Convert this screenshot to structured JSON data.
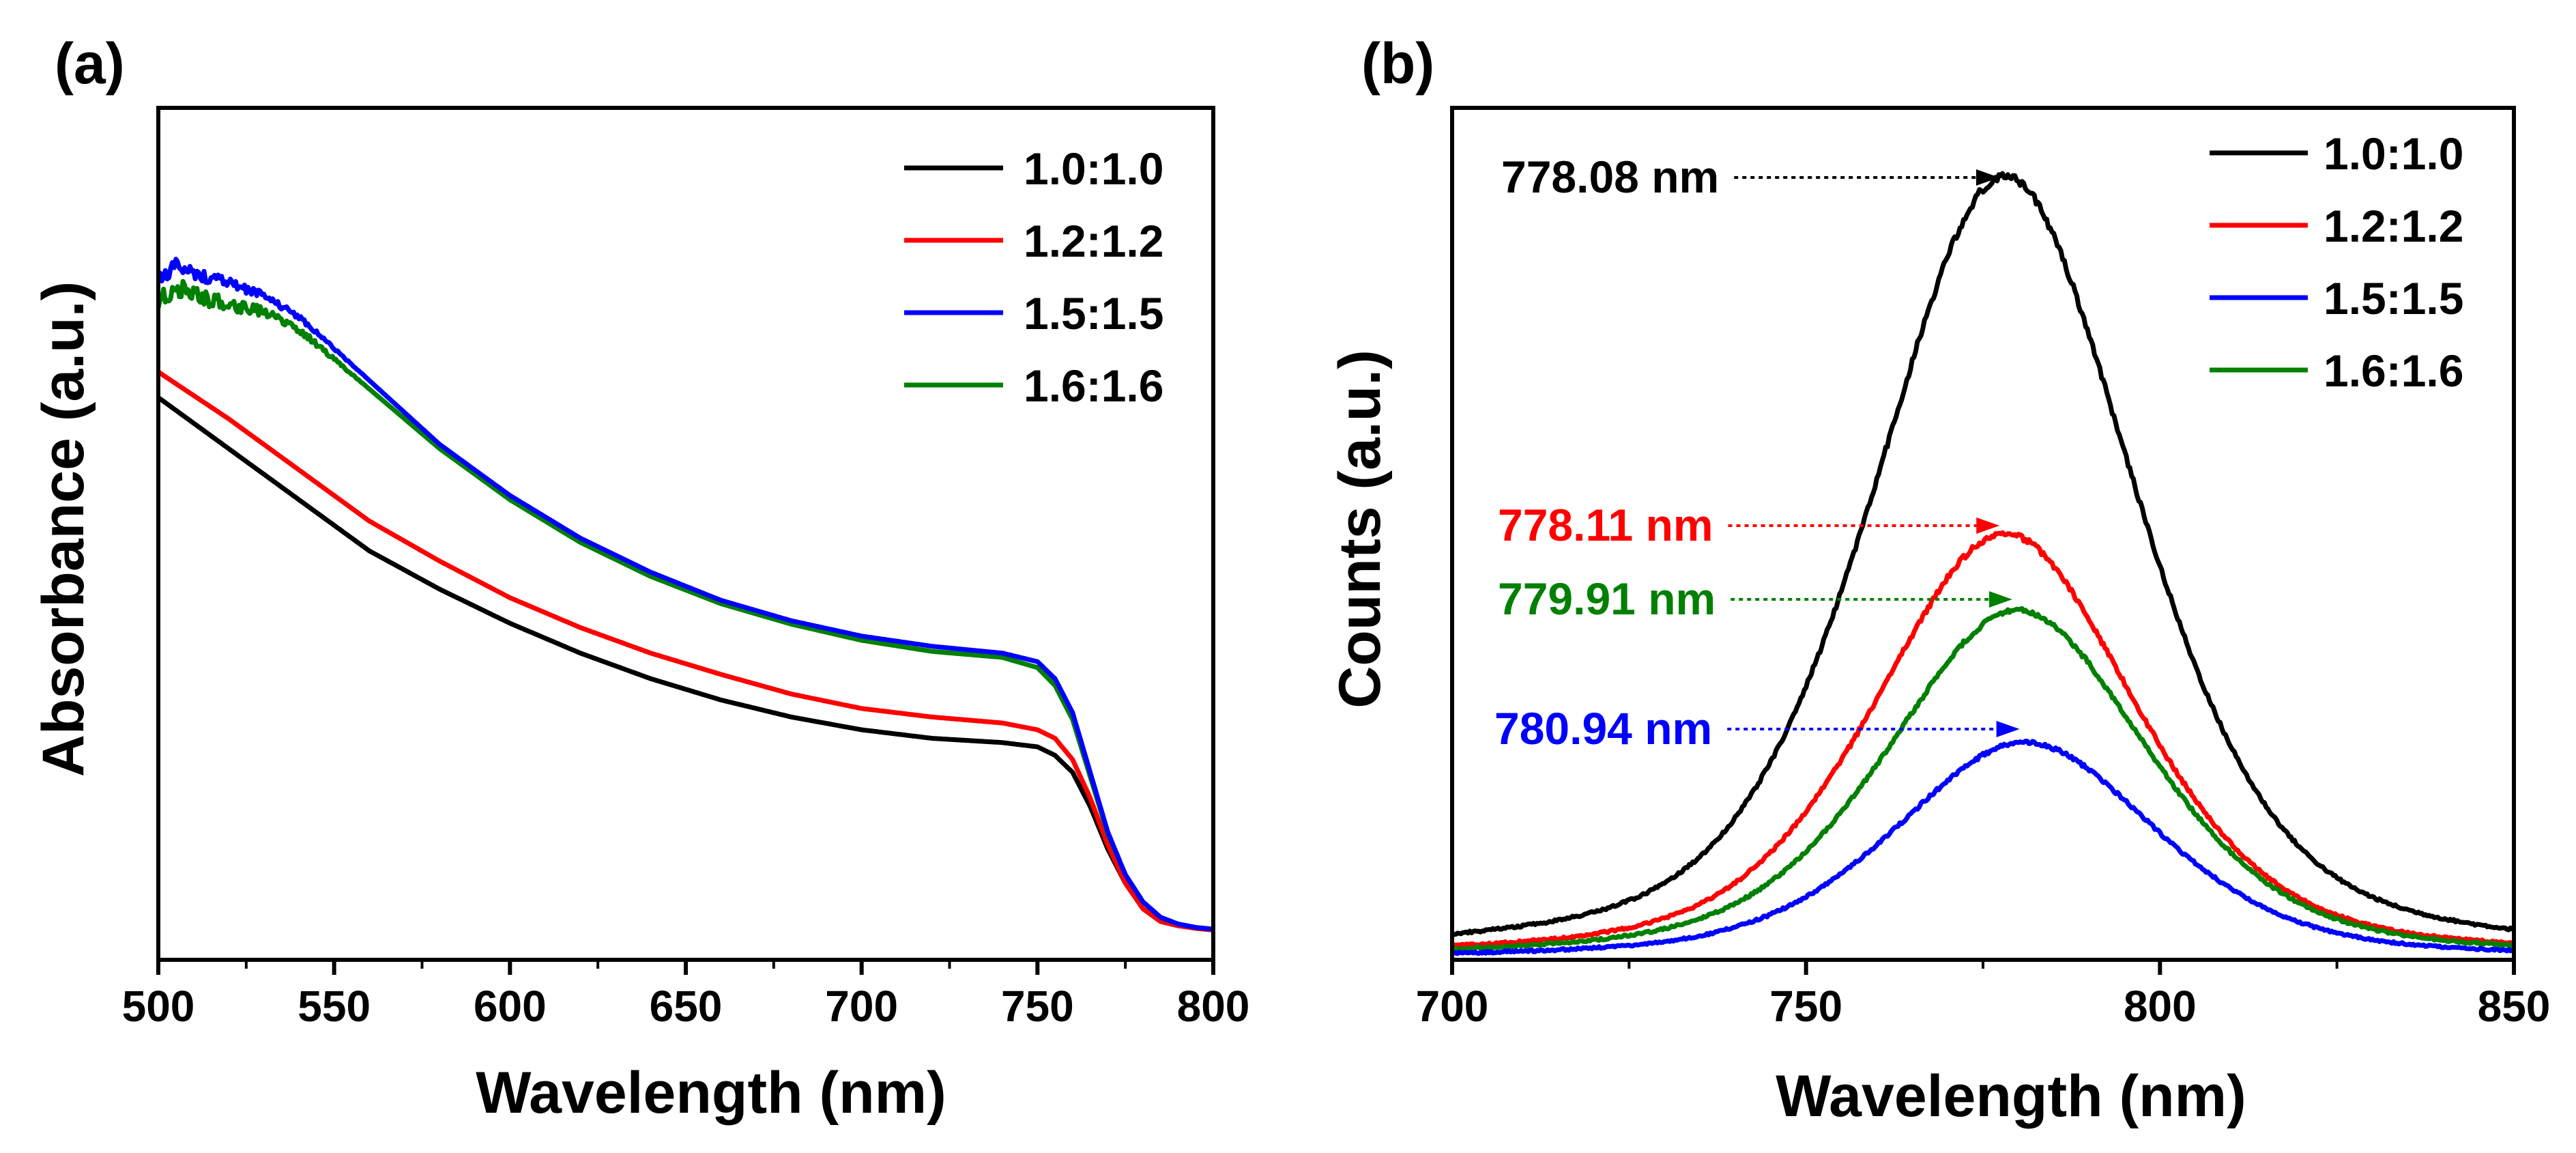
{
  "chart_data": [
    {
      "type": "line",
      "panel_label": "(a)",
      "xlabel": "Wavelength (nm)",
      "ylabel": "Absorbance (a.u.)",
      "xlim": [
        500,
        800
      ],
      "ylim": [
        0,
        1.0
      ],
      "xticks": [
        500,
        550,
        600,
        650,
        700,
        750,
        800
      ],
      "show_y_tick_labels": false,
      "legend_position": "top-right",
      "series": [
        {
          "name": "1.0:1.0",
          "color": "#000000",
          "x": [
            500,
            520,
            540,
            560,
            580,
            600,
            620,
            640,
            660,
            680,
            700,
            720,
            740,
            750,
            755,
            760,
            765,
            770,
            775,
            780,
            785,
            790,
            795,
            800
          ],
          "y": [
            0.66,
            0.6,
            0.54,
            0.48,
            0.435,
            0.395,
            0.36,
            0.33,
            0.305,
            0.285,
            0.27,
            0.26,
            0.255,
            0.25,
            0.24,
            0.22,
            0.18,
            0.13,
            0.09,
            0.06,
            0.045,
            0.04,
            0.037,
            0.035
          ],
          "noise": 0
        },
        {
          "name": "1.2:1.2",
          "color": "#ff0000",
          "x": [
            500,
            520,
            540,
            560,
            580,
            600,
            620,
            640,
            660,
            680,
            700,
            720,
            740,
            750,
            755,
            760,
            765,
            770,
            775,
            780,
            785,
            790,
            795,
            800
          ],
          "y": [
            0.69,
            0.635,
            0.575,
            0.515,
            0.468,
            0.425,
            0.39,
            0.36,
            0.335,
            0.312,
            0.295,
            0.285,
            0.278,
            0.27,
            0.26,
            0.235,
            0.19,
            0.135,
            0.09,
            0.06,
            0.045,
            0.04,
            0.037,
            0.035
          ],
          "noise": 0
        },
        {
          "name": "1.5:1.5",
          "color": "#0000ff",
          "x": [
            500,
            505,
            510,
            520,
            530,
            540,
            560,
            580,
            600,
            620,
            640,
            660,
            680,
            700,
            720,
            740,
            750,
            755,
            760,
            765,
            770,
            775,
            780,
            785,
            790,
            795,
            800
          ],
          "y": [
            0.8,
            0.815,
            0.805,
            0.795,
            0.78,
            0.755,
            0.68,
            0.605,
            0.545,
            0.495,
            0.455,
            0.422,
            0.398,
            0.38,
            0.368,
            0.36,
            0.35,
            0.33,
            0.29,
            0.22,
            0.15,
            0.1,
            0.068,
            0.05,
            0.042,
            0.038,
            0.036
          ],
          "noise": 0.009
        },
        {
          "name": "1.6:1.6",
          "color": "#008000",
          "x": [
            500,
            505,
            510,
            520,
            530,
            540,
            560,
            580,
            600,
            620,
            640,
            660,
            680,
            700,
            720,
            740,
            750,
            755,
            760,
            765,
            770,
            775,
            780,
            785,
            790,
            795,
            800
          ],
          "y": [
            0.77,
            0.79,
            0.78,
            0.77,
            0.76,
            0.74,
            0.67,
            0.6,
            0.54,
            0.49,
            0.45,
            0.418,
            0.394,
            0.375,
            0.362,
            0.355,
            0.343,
            0.322,
            0.282,
            0.215,
            0.148,
            0.1,
            0.068,
            0.05,
            0.042,
            0.038,
            0.036
          ],
          "noise": 0.012
        }
      ]
    },
    {
      "type": "line",
      "panel_label": "(b)",
      "xlabel": "Wavelength (nm)",
      "ylabel": "Counts (a.u.)",
      "xlim": [
        700,
        850
      ],
      "ylim": [
        0,
        1.0
      ],
      "xticks": [
        700,
        750,
        800,
        850
      ],
      "show_y_tick_labels": false,
      "legend_position": "top-right",
      "series": [
        {
          "name": "1.0:1.0",
          "color": "#000000",
          "peak_wavelength": 778.08,
          "amplitude": 0.92,
          "fwhm": 44,
          "noise": 0.004
        },
        {
          "name": "1.2:1.2",
          "color": "#ff0000",
          "peak_wavelength": 778.11,
          "amplitude": 0.5,
          "fwhm": 44,
          "noise": 0.004
        },
        {
          "name": "1.5:1.5",
          "color": "#0000ff",
          "peak_wavelength": 780.94,
          "amplitude": 0.255,
          "fwhm": 44,
          "noise": 0.004
        },
        {
          "name": "1.6:1.6",
          "color": "#008000",
          "peak_wavelength": 779.91,
          "amplitude": 0.41,
          "fwhm": 44,
          "noise": 0.004
        }
      ],
      "annotations": [
        {
          "text": "778.08 nm",
          "color": "#000000",
          "points_to_x": 778.08,
          "series": "1.0:1.0"
        },
        {
          "text": "778.11 nm",
          "color": "#ff0000",
          "points_to_x": 778.11,
          "series": "1.2:1.2"
        },
        {
          "text": "779.91 nm",
          "color": "#008000",
          "points_to_x": 779.91,
          "series": "1.6:1.6"
        },
        {
          "text": "780.94 nm",
          "color": "#0000ff",
          "points_to_x": 780.94,
          "series": "1.5:1.5"
        }
      ]
    }
  ]
}
